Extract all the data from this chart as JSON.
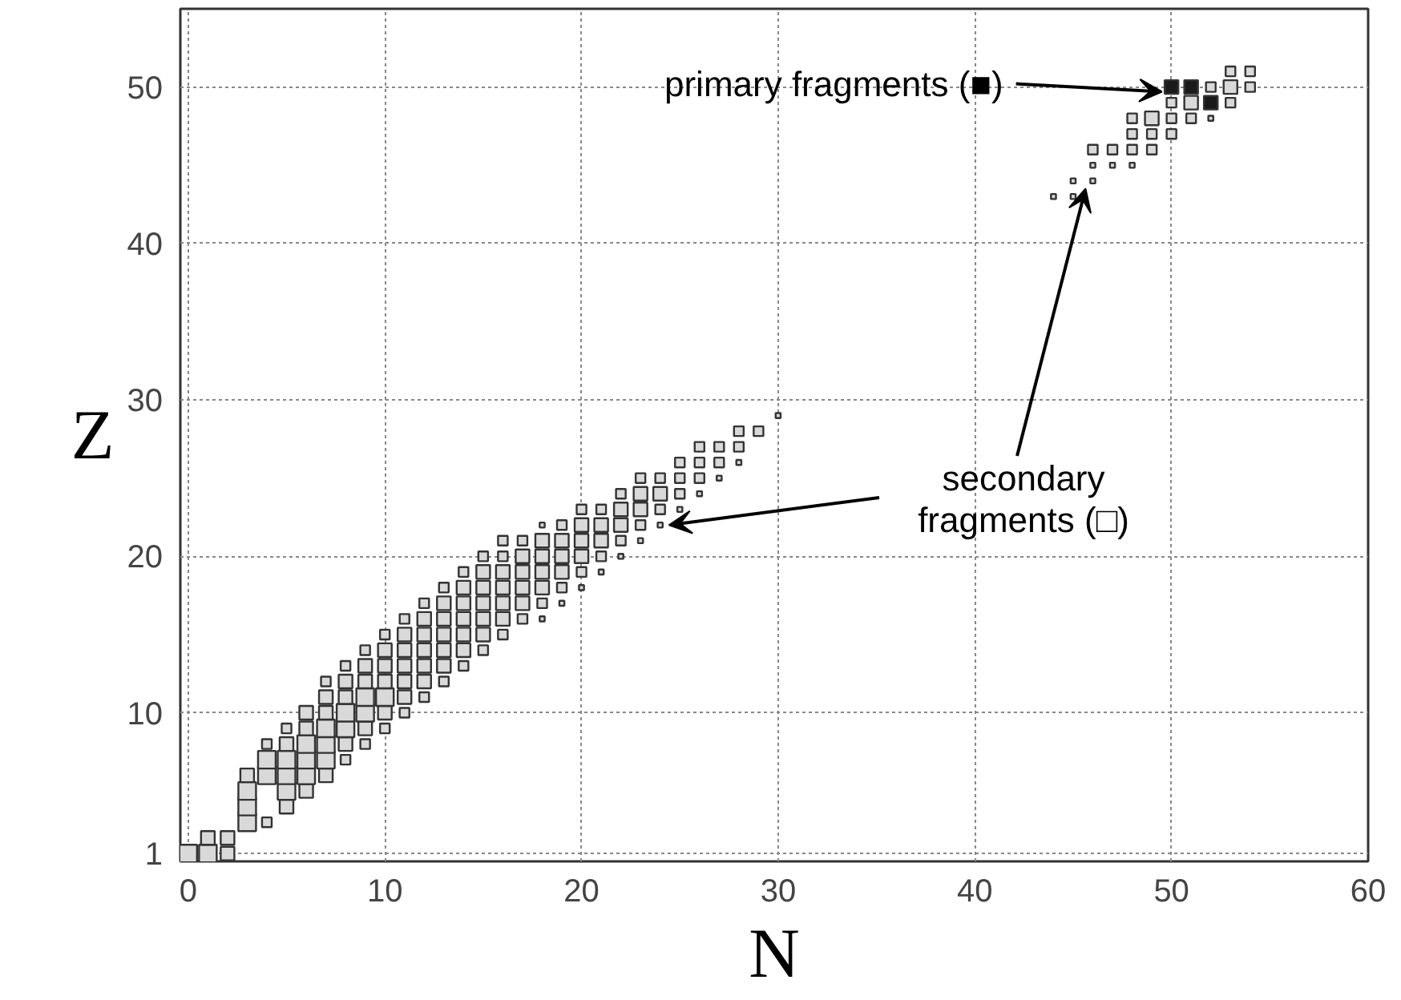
{
  "chart_data": {
    "type": "bubble",
    "xlabel": "N",
    "ylabel": "Z",
    "xlim": [
      -0.4,
      60
    ],
    "ylim": [
      0.5,
      55
    ],
    "xticks": [
      0,
      10,
      20,
      30,
      40,
      50,
      60
    ],
    "yticks": [
      1,
      10,
      20,
      30,
      40,
      50
    ],
    "grid": true,
    "marker": "square",
    "series": [
      {
        "color": "#d9d9d9",
        "x": [
          0,
          1,
          2,
          1,
          2,
          3,
          4,
          3,
          5,
          3,
          5,
          6,
          3,
          4,
          5,
          6,
          7,
          4,
          5,
          6,
          7,
          8,
          4,
          5,
          6,
          7,
          8,
          9,
          5,
          6,
          7,
          8,
          9,
          10,
          6,
          7,
          8,
          9,
          10,
          11,
          7,
          8,
          9,
          10,
          11,
          12,
          7,
          8,
          9,
          10,
          11,
          12,
          13,
          8,
          9,
          10,
          11,
          12,
          13,
          14,
          9,
          10,
          11,
          12,
          13,
          14,
          15,
          10,
          11,
          12,
          13,
          14,
          15,
          16,
          11,
          12,
          13,
          14,
          15,
          16,
          17,
          18,
          12,
          13,
          14,
          15,
          16,
          17,
          18,
          19,
          13,
          14,
          15,
          16,
          17,
          18,
          19,
          20,
          14,
          15,
          16,
          17,
          18,
          19,
          20,
          21,
          15,
          16,
          17,
          18,
          19,
          20,
          21,
          22,
          16,
          17,
          18,
          19,
          20,
          21,
          22,
          23,
          18,
          19,
          20,
          21,
          22,
          23,
          24,
          20,
          21,
          22,
          23,
          24,
          25,
          22,
          23,
          24,
          25,
          26,
          23,
          24,
          25,
          26,
          27,
          25,
          26,
          27,
          28,
          26,
          27,
          28,
          28,
          29,
          30
        ],
        "values": [
          1,
          1,
          1,
          2,
          2,
          3,
          3,
          4,
          4,
          5,
          5,
          5,
          6,
          6,
          6,
          6,
          6,
          7,
          7,
          7,
          7,
          7,
          8,
          8,
          8,
          8,
          8,
          8,
          9,
          9,
          9,
          9,
          9,
          9,
          10,
          10,
          10,
          10,
          10,
          10,
          11,
          11,
          11,
          11,
          11,
          11,
          12,
          12,
          12,
          12,
          12,
          12,
          12,
          13,
          13,
          13,
          13,
          13,
          13,
          13,
          14,
          14,
          14,
          14,
          14,
          14,
          14,
          15,
          15,
          15,
          15,
          15,
          15,
          15,
          16,
          16,
          16,
          16,
          16,
          16,
          16,
          16,
          17,
          17,
          17,
          17,
          17,
          17,
          17,
          17,
          18,
          18,
          18,
          18,
          18,
          18,
          18,
          18,
          19,
          19,
          19,
          19,
          19,
          19,
          19,
          19,
          20,
          20,
          20,
          20,
          20,
          20,
          20,
          20,
          21,
          21,
          21,
          21,
          21,
          21,
          21,
          21,
          22,
          22,
          22,
          22,
          22,
          22,
          22,
          23,
          23,
          23,
          23,
          23,
          23,
          24,
          24,
          24,
          24,
          24,
          25,
          25,
          25,
          25,
          25,
          26,
          26,
          26,
          26,
          27,
          27,
          27,
          28,
          28,
          29
        ],
        "sizes": [
          1,
          1,
          0.6,
          0.6,
          0.6,
          1,
          0.3,
          1,
          0.6,
          1,
          1,
          0.6,
          0.6,
          1,
          1,
          1,
          0.6,
          1,
          1,
          1,
          1,
          0.3,
          0.3,
          0.6,
          1,
          1,
          0.6,
          0.3,
          0.3,
          0.6,
          1,
          1,
          0.6,
          0.3,
          0.6,
          0.6,
          1,
          1,
          0.6,
          0.3,
          0.6,
          0.6,
          1,
          1,
          0.6,
          0.3,
          0.3,
          0.6,
          0.6,
          0.6,
          0.6,
          0.6,
          0.3,
          0.3,
          0.6,
          0.6,
          0.6,
          0.6,
          0.6,
          0.3,
          0.3,
          0.6,
          0.6,
          0.6,
          0.6,
          0.6,
          0.3,
          0.3,
          0.6,
          0.6,
          0.6,
          0.6,
          0.6,
          0.3,
          0.3,
          0.6,
          0.6,
          0.6,
          0.6,
          0.6,
          0.3,
          0.08,
          0.3,
          0.6,
          0.6,
          0.6,
          0.6,
          0.6,
          0.3,
          0.08,
          0.3,
          0.6,
          0.6,
          0.6,
          0.6,
          0.6,
          0.3,
          0.08,
          0.3,
          0.6,
          0.6,
          0.6,
          0.6,
          0.6,
          0.3,
          0.08,
          0.3,
          0.3,
          0.6,
          0.6,
          0.6,
          0.6,
          0.3,
          0.08,
          0.3,
          0.3,
          0.6,
          0.6,
          0.6,
          0.6,
          0.3,
          0.08,
          0.08,
          0.3,
          0.6,
          0.6,
          0.6,
          0.3,
          0.08,
          0.3,
          0.3,
          0.6,
          0.6,
          0.3,
          0.08,
          0.3,
          0.6,
          0.6,
          0.3,
          0.08,
          0.3,
          0.3,
          0.3,
          0.3,
          0.08,
          0.3,
          0.3,
          0.3,
          0.08,
          0.3,
          0.3,
          0.3,
          0.3,
          0.3,
          0.08
        ]
      },
      {
        "color": "#d9d9d9",
        "x": [
          53,
          54,
          52,
          53,
          54,
          50,
          51,
          53,
          48,
          49,
          50,
          51,
          52,
          48,
          49,
          50,
          46,
          47,
          48,
          49,
          46,
          47,
          48,
          45,
          46,
          44,
          45
        ],
        "values": [
          51,
          51,
          50,
          50,
          50,
          49,
          49,
          49,
          48,
          48,
          48,
          48,
          48,
          47,
          47,
          47,
          46,
          46,
          46,
          46,
          45,
          45,
          45,
          44,
          44,
          43,
          43
        ],
        "sizes": [
          0.3,
          0.3,
          0.3,
          0.6,
          0.3,
          0.3,
          0.6,
          0.3,
          0.3,
          0.6,
          0.3,
          0.3,
          0.08,
          0.3,
          0.3,
          0.3,
          0.3,
          0.3,
          0.3,
          0.3,
          0.08,
          0.08,
          0.08,
          0.08,
          0.08,
          0.08,
          0.08
        ]
      },
      {
        "color": "#1a1a1a",
        "x": [
          50,
          51,
          52
        ],
        "values": [
          50,
          50,
          49
        ],
        "sizes": [
          0.6,
          0.6,
          0.6
        ]
      }
    ],
    "annotations": [
      {
        "text": "primary fragments (■)",
        "x": 50,
        "y": 50
      },
      {
        "text": "secondary fragments (□)",
        "x": 24,
        "y": 22
      }
    ]
  }
}
